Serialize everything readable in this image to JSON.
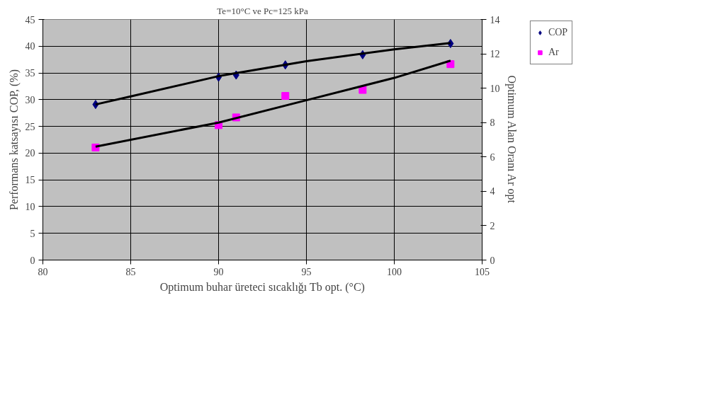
{
  "chart_data": {
    "type": "scatter",
    "title": "Te=10°C ve Pc=125 kPa",
    "xlabel": "Optimum buhar üreteci sıcaklığı Tb opt. (°C)",
    "ylabel": "Performans katsayısı COP, (%)",
    "y2label": "Optimum Alan Oranı Ar opt",
    "x": [
      83,
      90,
      91,
      93.8,
      98.2,
      103.2
    ],
    "series": [
      {
        "name": "COP",
        "color": "#000080",
        "values": [
          29.1,
          34.2,
          34.6,
          36.5,
          38.4,
          40.5
        ],
        "marker": "diamond"
      },
      {
        "name": "Ar",
        "color": "#ff00ff",
        "values": [
          6.55,
          7.85,
          8.3,
          9.55,
          9.9,
          11.4
        ],
        "marker": "square",
        "axis": "y2"
      },
      {
        "type": "line",
        "color": "#000000",
        "x": [
          83,
          85,
          90,
          95,
          100,
          103.2
        ],
        "values": [
          29.1,
          30.6,
          34.4,
          37.2,
          39.4,
          40.6
        ]
      },
      {
        "type": "line",
        "color": "#000000",
        "axis": "y2",
        "x": [
          83,
          90,
          95,
          100,
          103.2
        ],
        "values": [
          6.6,
          8.0,
          9.3,
          10.6,
          11.6
        ]
      }
    ],
    "xlim": [
      80,
      105
    ],
    "xticks": [
      80,
      85,
      90,
      95,
      100,
      105
    ],
    "ylim": [
      0,
      45
    ],
    "yticks": [
      0,
      5,
      10,
      15,
      20,
      25,
      30,
      35,
      40,
      45
    ],
    "y2lim": [
      0,
      14
    ],
    "y2ticks": [
      0,
      2,
      4,
      6,
      8,
      10,
      12,
      14
    ],
    "grid": true,
    "legend": "right"
  }
}
